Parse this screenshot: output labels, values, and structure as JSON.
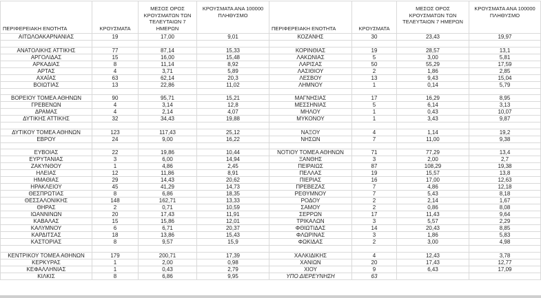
{
  "headers": {
    "region": "ΠΕΡΙΦΕΡΕΙΑΚΗ ΕΝΟΤΗΤΑ",
    "cases": "ΚΡΟΥΣΜΑΤΑ",
    "avg7": "ΜΕΣΟΣ ΟΡΟΣ ΚΡΟΥΣΜΑΤΩΝ ΤΩΝ ΤΕΛΕΥΤΑΙΩΝ 7 ΗΜΕΡΩΝ",
    "per100k": "ΚΡΟΥΣΜΑΤΑ ΑΝΑ 100000 ΠΛΗΘΥΣΜΟ"
  },
  "colors": {
    "grid": "#d9d9d9",
    "text": "#1f1f1f",
    "background": "#ffffff",
    "edge": "#cfcfcf"
  },
  "chart_data": {
    "type": "table",
    "layout": "two-column-pairs",
    "columns": [
      "ΠΕΡΙΦΕΡΕΙΑΚΗ ΕΝΟΤΗΤΑ",
      "ΚΡΟΥΣΜΑΤΑ",
      "ΜΕΣΟΣ ΟΡΟΣ ΚΡΟΥΣΜΑΤΩΝ ΤΩΝ ΤΕΛΕΥΤΑΙΩΝ 7 ΗΜΕΡΩΝ",
      "ΚΡΟΥΣΜΑΤΑ ΑΝΑ 100000 ΠΛΗΘΥΣΜΟ"
    ],
    "rows": [
      {
        "l": [
          "ΑΙΤΩΛΟΑΚΑΡΝΑΝΙΑΣ",
          "19",
          "17,00",
          "9,01"
        ],
        "r": [
          "ΚΟΖΑΝΗΣ",
          "30",
          "23,43",
          "19,97"
        ]
      },
      {
        "l": null,
        "r": null
      },
      {
        "l": [
          "ΑΝΑΤΟΛΙΚΗΣ ΑΤΤΙΚΗΣ",
          "77",
          "87,14",
          "15,33"
        ],
        "r": [
          "ΚΟΡΙΝΘΙΑΣ",
          "19",
          "28,57",
          "13,1"
        ]
      },
      {
        "l": [
          "ΑΡΓΟΛΙΔΑΣ",
          "15",
          "16,00",
          "15,48"
        ],
        "r": [
          "ΛΑΚΩΝΙΑΣ",
          "5",
          "3,00",
          "5,81"
        ]
      },
      {
        "l": [
          "ΑΡΚΑΔΙΑΣ",
          "8",
          "11,14",
          "8,92"
        ],
        "r": [
          "ΛΑΡΙΣΑΣ",
          "50",
          "55,29",
          "17,59"
        ]
      },
      {
        "l": [
          "ΑΡΤΑΣ",
          "4",
          "3,71",
          "5,89"
        ],
        "r": [
          "ΛΑΣΙΘΙΟΥ",
          "2",
          "1,86",
          "2,85"
        ]
      },
      {
        "l": [
          "ΑΧΑΪΑΣ",
          "63",
          "62,14",
          "20,3"
        ],
        "r": [
          "ΛΕΣΒΟΥ",
          "13",
          "9,43",
          "15,04"
        ]
      },
      {
        "l": [
          "ΒΟΙΩΤΙΑΣ",
          "13",
          "22,86",
          "11,02"
        ],
        "r": [
          "ΛΗΜΝΟΥ",
          "1",
          "0,14",
          "5,79"
        ]
      },
      {
        "l": null,
        "r": null
      },
      {
        "l": [
          "ΒΟΡΕΙΟΥ ΤΟΜΕΑ ΑΘΗΝΩΝ",
          "90",
          "95,71",
          "15,21"
        ],
        "r": [
          "ΜΑΓΝΗΣΙΑΣ",
          "17",
          "16,29",
          "8,95"
        ]
      },
      {
        "l": [
          "ΓΡΕΒΕΝΩΝ",
          "4",
          "3,14",
          "12,8"
        ],
        "r": [
          "ΜΕΣΣΗΝΙΑΣ",
          "5",
          "6,14",
          "3,13"
        ]
      },
      {
        "l": [
          "ΔΡΑΜΑΣ",
          "4",
          "2,14",
          "4,07"
        ],
        "r": [
          "ΜΗΛΟΥ",
          "1",
          "0,43",
          "10,07"
        ]
      },
      {
        "l": [
          "ΔΥΤΙΚΗΣ ΑΤΤΙΚΗΣ",
          "32",
          "34,43",
          "19,88"
        ],
        "r": [
          "ΜΥΚΟΝΟΥ",
          "1",
          "3,43",
          "9,87"
        ]
      },
      {
        "l": null,
        "r": null
      },
      {
        "l": [
          "ΔΥΤΙΚΟΥ ΤΟΜΕΑ ΑΘΗΝΩΝ",
          "123",
          "117,43",
          "25,12"
        ],
        "r": [
          "ΝΑΞΟΥ",
          "4",
          "1,14",
          "19,2"
        ]
      },
      {
        "l": [
          "ΕΒΡΟΥ",
          "24",
          "9,00",
          "16,22"
        ],
        "r": [
          "ΝΗΣΩΝ",
          "7",
          "11,00",
          "9,38"
        ]
      },
      {
        "l": null,
        "r": null
      },
      {
        "l": [
          "ΕΥΒΟΙΑΣ",
          "22",
          "19,86",
          "10,44"
        ],
        "r": [
          "ΝΟΤΙΟΥ ΤΟΜΕΑ ΑΘΗΝΩΝ",
          "71",
          "77,29",
          "13,4"
        ]
      },
      {
        "l": [
          "ΕΥΡΥΤΑΝΙΑΣ",
          "3",
          "6,00",
          "14,94"
        ],
        "r": [
          "ΞΑΝΘΗΣ",
          "3",
          "2,00",
          "2,7"
        ]
      },
      {
        "l": [
          "ΖΑΚΥΝΘΟΥ",
          "1",
          "4,86",
          "2,45"
        ],
        "r": [
          "ΠΕΙΡΑΙΩΣ",
          "87",
          "108,29",
          "19,38"
        ]
      },
      {
        "l": [
          "ΗΛΕΙΑΣ",
          "12",
          "11,86",
          "8,91"
        ],
        "r": [
          "ΠΕΛΛΑΣ",
          "19",
          "15,57",
          "13,8"
        ]
      },
      {
        "l": [
          "ΗΜΑΘΙΑΣ",
          "29",
          "14,43",
          "20,62"
        ],
        "r": [
          "ΠΙΕΡΙΑΣ",
          "16",
          "17,00",
          "12,63"
        ]
      },
      {
        "l": [
          "ΗΡΑΚΛΕΙΟΥ",
          "45",
          "41,29",
          "14,73"
        ],
        "r": [
          "ΠΡΕΒΕΖΑΣ",
          "7",
          "4,86",
          "12,18"
        ]
      },
      {
        "l": [
          "ΘΕΣΠΡΩΤΙΑΣ",
          "8",
          "6,86",
          "18,35"
        ],
        "r": [
          "ΡΕΘΥΜΝΟΥ",
          "7",
          "5,43",
          "8,18"
        ]
      },
      {
        "l": [
          "ΘΕΣΣΑΛΟΝΙΚΗΣ",
          "148",
          "162,71",
          "13,33"
        ],
        "r": [
          "ΡΟΔΟΥ",
          "2",
          "2,14",
          "1,67"
        ]
      },
      {
        "l": [
          "ΘΗΡΑΣ",
          "2",
          "0,71",
          "10,59"
        ],
        "r": [
          "ΣΑΜΟΥ",
          "2",
          "0,86",
          "8,08"
        ]
      },
      {
        "l": [
          "ΙΩΑΝΝΙΝΩΝ",
          "20",
          "17,43",
          "11,91"
        ],
        "r": [
          "ΣΕΡΡΩΝ",
          "17",
          "11,43",
          "9,64"
        ]
      },
      {
        "l": [
          "ΚΑΒΑΛΑΣ",
          "15",
          "15,86",
          "12,01"
        ],
        "r": [
          "ΤΡΙΚΑΛΩΝ",
          "3",
          "5,57",
          "2,29"
        ]
      },
      {
        "l": [
          "ΚΑΛΥΜΝΟΥ",
          "6",
          "6,71",
          "20,37"
        ],
        "r": [
          "ΦΘΙΩΤΙΔΑΣ",
          "14",
          "20,43",
          "8,85"
        ]
      },
      {
        "l": [
          "ΚΑΡΔΙΤΣΑΣ",
          "18",
          "13,86",
          "15,43"
        ],
        "r": [
          "ΦΛΩΡΙΝΑΣ",
          "3",
          "1,86",
          "5,83"
        ]
      },
      {
        "l": [
          "ΚΑΣΤΟΡΙΑΣ",
          "8",
          "9,57",
          "15,9"
        ],
        "r": [
          "ΦΩΚΙΔΑΣ",
          "2",
          "3,00",
          "4,98"
        ]
      },
      {
        "l": null,
        "r": null
      },
      {
        "l": [
          "ΚΕΝΤΡΙΚΟΥ ΤΟΜΕΑ ΑΘΗΝΩΝ",
          "179",
          "200,71",
          "17,39"
        ],
        "r": [
          "ΧΑΛΚΙΔΙΚΗΣ",
          "4",
          "12,43",
          "3,78"
        ]
      },
      {
        "l": [
          "ΚΕΡΚΥΡΑΣ",
          "1",
          "2,00",
          "0,98"
        ],
        "r": [
          "ΧΑΝΙΩΝ",
          "20",
          "17,43",
          "12,77"
        ]
      },
      {
        "l": [
          "ΚΕΦΑΛΛΗΝΙΑΣ",
          "1",
          "0,43",
          "2,79"
        ],
        "r": [
          "ΧΙΟΥ",
          "9",
          "6,43",
          "17,09"
        ]
      },
      {
        "l": [
          "ΚΙΛΚΙΣ",
          "8",
          "6,86",
          "9,95"
        ],
        "r": [
          "ΥΠΟ ΔΙΕΡΕΥΝΗΣΗ",
          "63",
          "",
          ""
        ],
        "r_italic": true
      }
    ]
  }
}
